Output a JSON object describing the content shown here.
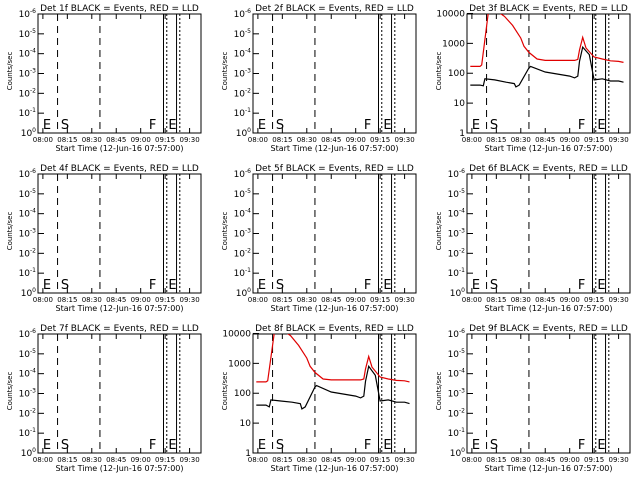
{
  "figure": {
    "xlabel_prefix": "Start Time",
    "start_time": "(12-Jun-16 07:57:00)",
    "ylabel": "Counts/sec"
  },
  "colors": {
    "events": "#000000",
    "lld": "#e00000",
    "axes": "#000000"
  },
  "chart_data": [
    {
      "type": "line",
      "title": "Det 1f BLACK = Events, RED = LLD",
      "xlabel": "Start Time (12-Jun-16 07:57:00)",
      "ylabel": "Counts/sec",
      "yscale": "log",
      "x_ticks": [
        "08:00",
        "08:15",
        "08:30",
        "08:45",
        "09:00",
        "09:15",
        "09:30"
      ],
      "y_ticks": [
        "10^0",
        "10^-1",
        "10^-2",
        "10^-3",
        "10^-4",
        "10^-5",
        "10^-6"
      ],
      "markers": [
        "E",
        "S",
        "F",
        "E"
      ],
      "series": []
    },
    {
      "type": "line",
      "title": "Det 2f BLACK = Events, RED = LLD",
      "xlabel": "Start Time (12-Jun-16 07:57:00)",
      "ylabel": "Counts/sec",
      "yscale": "log",
      "x_ticks": [
        "08:00",
        "08:15",
        "08:30",
        "08:45",
        "09:00",
        "09:15",
        "09:30"
      ],
      "y_ticks": [
        "10^0",
        "10^-1",
        "10^-2",
        "10^-3",
        "10^-4",
        "10^-5",
        "10^-6"
      ],
      "markers": [
        "E",
        "S",
        "F",
        "E"
      ],
      "series": []
    },
    {
      "type": "line",
      "title": "Det 3f BLACK = Events, RED = LLD",
      "xlabel": "Start Time (12-Jun-16 07:57:00)",
      "ylabel": "Counts/sec",
      "yscale": "log",
      "ylim": [
        1,
        10000
      ],
      "x_ticks": [
        "08:00",
        "08:15",
        "08:30",
        "08:45",
        "09:00",
        "09:15",
        "09:30"
      ],
      "y_ticks": [
        "10000",
        "1000",
        "100",
        "10",
        "1"
      ],
      "markers": [
        "E",
        "S",
        "F",
        "E"
      ],
      "series": [
        {
          "name": "Events",
          "color": "#000000",
          "x": [
            "07:59",
            "08:05",
            "08:07",
            "08:08",
            "08:14",
            "08:21",
            "08:26",
            "08:27",
            "08:29",
            "08:35",
            "08:36",
            "08:45",
            "09:00",
            "09:03",
            "09:05",
            "09:06",
            "09:08",
            "09:12",
            "09:15",
            "09:20",
            "09:25",
            "09:30",
            "09:33"
          ],
          "y": [
            40,
            40,
            38,
            65,
            60,
            50,
            45,
            35,
            40,
            150,
            170,
            110,
            80,
            70,
            80,
            250,
            750,
            420,
            60,
            65,
            55,
            55,
            50
          ]
        },
        {
          "name": "LLD",
          "color": "#e00000",
          "x": [
            "07:59",
            "08:05",
            "08:06",
            "08:10",
            "08:15",
            "08:20",
            "08:25",
            "08:30",
            "08:32",
            "08:35",
            "08:40",
            "08:45",
            "09:00",
            "09:03",
            "09:05",
            "09:06",
            "09:08",
            "09:10",
            "09:15",
            "09:20",
            "09:25",
            "09:30",
            "09:33"
          ],
          "y": [
            170,
            170,
            190,
            10000,
            12500,
            8000,
            4000,
            1500,
            800,
            500,
            300,
            270,
            270,
            270,
            290,
            600,
            1600,
            700,
            350,
            300,
            260,
            250,
            230
          ]
        }
      ]
    },
    {
      "type": "line",
      "title": "Det 4f BLACK = Events, RED = LLD",
      "xlabel": "Start Time (12-Jun-16 07:57:00)",
      "ylabel": "Counts/sec",
      "yscale": "log",
      "x_ticks": [
        "08:00",
        "08:15",
        "08:30",
        "08:45",
        "09:00",
        "09:15",
        "09:30"
      ],
      "y_ticks": [
        "10^0",
        "10^-1",
        "10^-2",
        "10^-3",
        "10^-4",
        "10^-5",
        "10^-6"
      ],
      "markers": [
        "E",
        "S",
        "F",
        "E"
      ],
      "series": []
    },
    {
      "type": "line",
      "title": "Det 5f BLACK = Events, RED = LLD",
      "xlabel": "Start Time (12-Jun-16 07:57:00)",
      "ylabel": "Counts/sec",
      "yscale": "log",
      "x_ticks": [
        "08:00",
        "08:15",
        "08:30",
        "08:45",
        "09:00",
        "09:15",
        "09:30"
      ],
      "y_ticks": [
        "10^0",
        "10^-1",
        "10^-2",
        "10^-3",
        "10^-4",
        "10^-5",
        "10^-6"
      ],
      "markers": [
        "E",
        "S",
        "F",
        "E"
      ],
      "series": []
    },
    {
      "type": "line",
      "title": "Det 6f BLACK = Events, RED = LLD",
      "xlabel": "Start Time (12-Jun-16 07:57:00)",
      "ylabel": "Counts/sec",
      "yscale": "log",
      "x_ticks": [
        "08:00",
        "08:15",
        "08:30",
        "08:45",
        "09:00",
        "09:15",
        "09:30"
      ],
      "y_ticks": [
        "10^0",
        "10^-1",
        "10^-2",
        "10^-3",
        "10^-4",
        "10^-5",
        "10^-6"
      ],
      "markers": [
        "E",
        "S",
        "F",
        "E"
      ],
      "series": []
    },
    {
      "type": "line",
      "title": "Det 7f BLACK = Events, RED = LLD",
      "xlabel": "Start Time (12-Jun-16 07:57:00)",
      "ylabel": "Counts/sec",
      "yscale": "log",
      "x_ticks": [
        "08:00",
        "08:15",
        "08:30",
        "08:45",
        "09:00",
        "09:15",
        "09:30"
      ],
      "y_ticks": [
        "10^0",
        "10^-1",
        "10^-2",
        "10^-3",
        "10^-4",
        "10^-5",
        "10^-6"
      ],
      "markers": [
        "E",
        "S",
        "F",
        "E"
      ],
      "series": []
    },
    {
      "type": "line",
      "title": "Det 8f BLACK = Events, RED = LLD",
      "xlabel": "Start Time (12-Jun-16 07:57:00)",
      "ylabel": "Counts/sec",
      "yscale": "log",
      "ylim": [
        1,
        10000
      ],
      "x_ticks": [
        "08:00",
        "08:15",
        "08:30",
        "08:45",
        "09:00",
        "09:15",
        "09:30"
      ],
      "y_ticks": [
        "10000",
        "1000",
        "100",
        "10",
        "1"
      ],
      "markers": [
        "E",
        "S",
        "F",
        "E"
      ],
      "series": [
        {
          "name": "Events",
          "color": "#000000",
          "x": [
            "07:59",
            "08:05",
            "08:07",
            "08:08",
            "08:14",
            "08:21",
            "08:26",
            "08:27",
            "08:29",
            "08:35",
            "08:36",
            "08:45",
            "09:00",
            "09:03",
            "09:05",
            "09:06",
            "09:08",
            "09:12",
            "09:15",
            "09:20",
            "09:25",
            "09:30",
            "09:33"
          ],
          "y": [
            40,
            40,
            35,
            60,
            55,
            50,
            45,
            30,
            35,
            160,
            180,
            110,
            80,
            70,
            80,
            250,
            800,
            400,
            55,
            60,
            50,
            50,
            45
          ]
        },
        {
          "name": "LLD",
          "color": "#e00000",
          "x": [
            "07:59",
            "08:05",
            "08:06",
            "08:10",
            "08:15",
            "08:20",
            "08:25",
            "08:30",
            "08:32",
            "08:35",
            "08:40",
            "08:45",
            "09:00",
            "09:03",
            "09:05",
            "09:06",
            "09:08",
            "09:10",
            "09:15",
            "09:20",
            "09:25",
            "09:30",
            "09:33"
          ],
          "y": [
            240,
            240,
            260,
            10000,
            13000,
            8500,
            4000,
            1500,
            800,
            500,
            300,
            280,
            280,
            280,
            300,
            650,
            1700,
            750,
            350,
            300,
            270,
            260,
            240
          ]
        }
      ]
    },
    {
      "type": "line",
      "title": "Det 9f BLACK = Events, RED = LLD",
      "xlabel": "Start Time (12-Jun-16 07:57:00)",
      "ylabel": "Counts/sec",
      "yscale": "log",
      "x_ticks": [
        "08:00",
        "08:15",
        "08:30",
        "08:45",
        "09:00",
        "09:15",
        "09:30"
      ],
      "y_ticks": [
        "10^0",
        "10^-1",
        "10^-2",
        "10^-3",
        "10^-4",
        "10^-5",
        "10^-6"
      ],
      "markers": [
        "E",
        "S",
        "F",
        "E"
      ],
      "series": []
    }
  ]
}
